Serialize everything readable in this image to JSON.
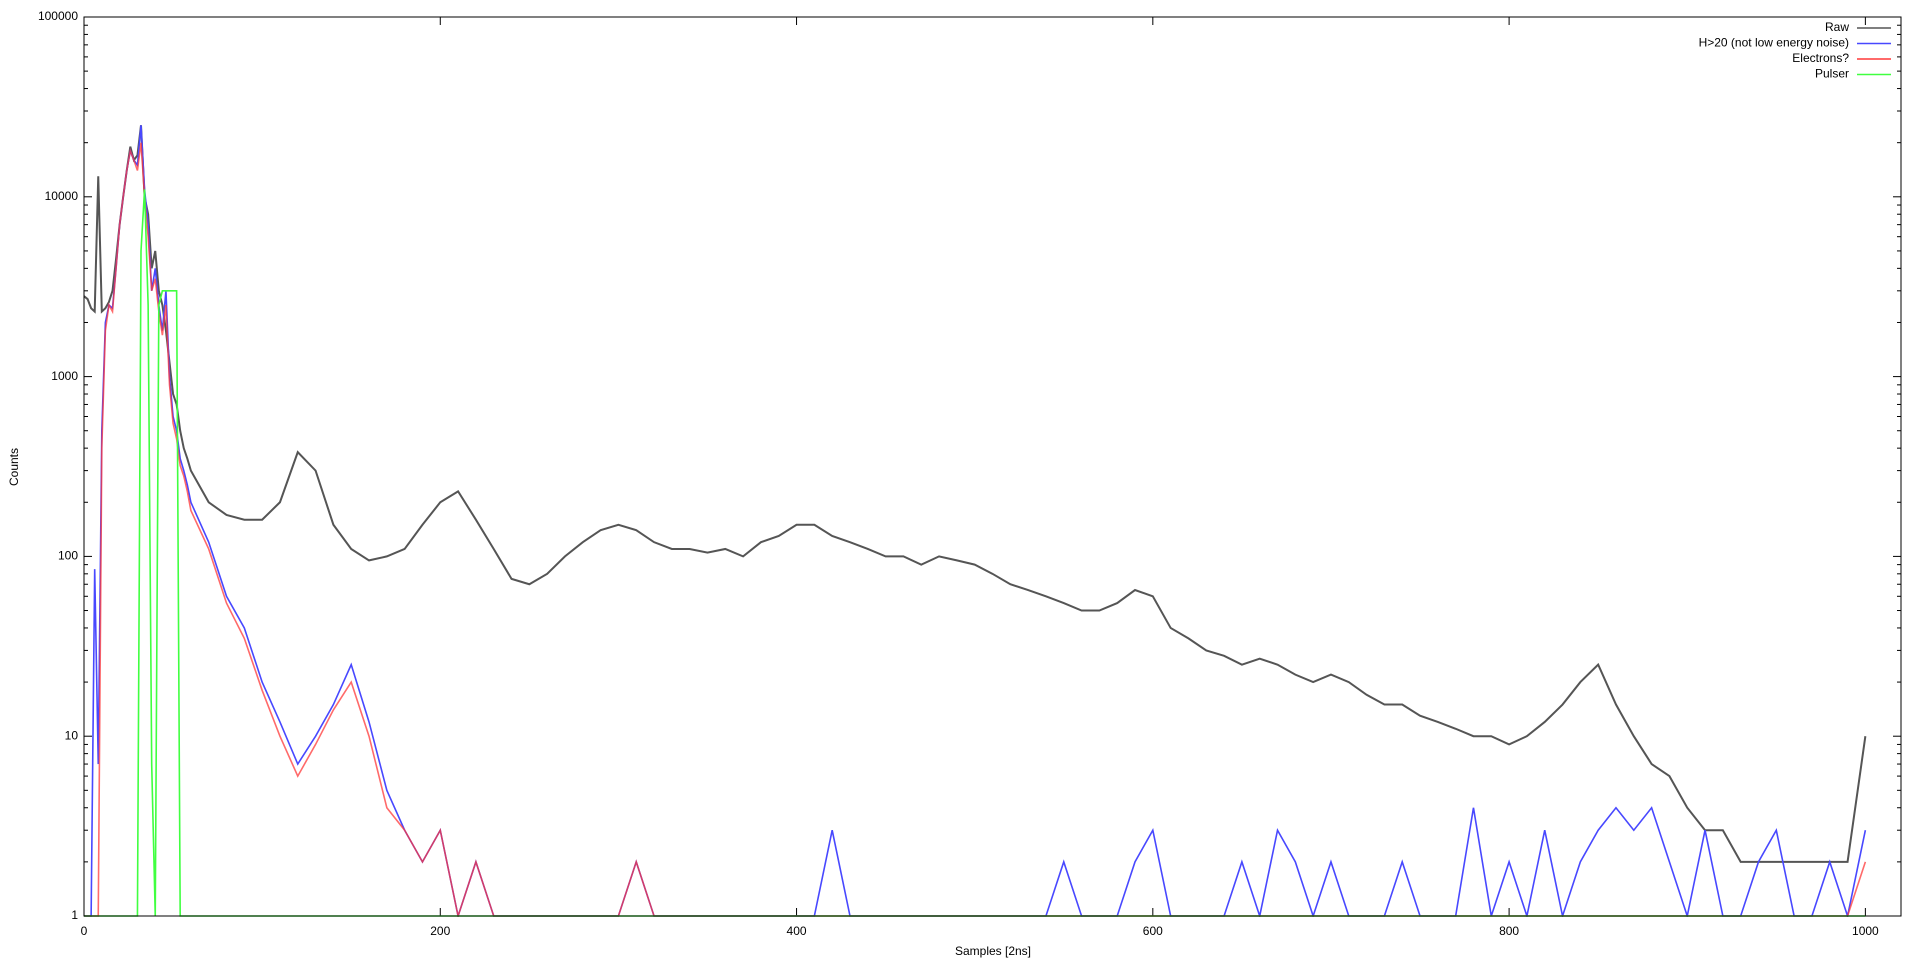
{
  "chart_data": {
    "type": "line",
    "x_label": "Samples [2ns]",
    "y_label": "Counts",
    "log_y": true,
    "legend": "top right",
    "xlim": [
      0,
      1020
    ],
    "ylim": [
      1,
      100000
    ],
    "xticks": [
      0,
      200,
      400,
      600,
      800,
      1000
    ],
    "yticks": [
      1,
      10,
      100,
      1000,
      10000,
      100000
    ],
    "x": [
      0,
      2,
      4,
      6,
      8,
      10,
      12,
      14,
      16,
      18,
      20,
      22,
      24,
      26,
      28,
      30,
      32,
      34,
      36,
      38,
      40,
      42,
      44,
      46,
      48,
      50,
      52,
      54,
      56,
      58,
      60,
      70,
      80,
      90,
      100,
      110,
      120,
      130,
      140,
      150,
      160,
      170,
      180,
      190,
      200,
      210,
      220,
      230,
      240,
      250,
      260,
      270,
      280,
      290,
      300,
      310,
      320,
      330,
      340,
      350,
      360,
      370,
      380,
      390,
      400,
      410,
      420,
      430,
      440,
      450,
      460,
      470,
      480,
      490,
      500,
      510,
      520,
      530,
      540,
      550,
      560,
      570,
      580,
      590,
      600,
      610,
      620,
      630,
      640,
      650,
      660,
      670,
      680,
      690,
      700,
      710,
      720,
      730,
      740,
      750,
      760,
      770,
      780,
      790,
      800,
      810,
      820,
      830,
      840,
      850,
      860,
      870,
      880,
      890,
      900,
      910,
      920,
      930,
      940,
      950,
      960,
      970,
      980,
      990,
      1000
    ],
    "series": [
      {
        "name": "Raw",
        "color": "#555555",
        "values": [
          2800,
          2700,
          2400,
          2300,
          13000,
          2300,
          2400,
          2600,
          3000,
          4500,
          7000,
          10000,
          14000,
          19000,
          16000,
          17000,
          25000,
          10000,
          8000,
          4000,
          5000,
          3000,
          2500,
          1800,
          1200,
          800,
          700,
          500,
          400,
          350,
          300,
          200,
          170,
          160,
          160,
          200,
          380,
          300,
          150,
          110,
          95,
          100,
          110,
          150,
          200,
          230,
          160,
          110,
          75,
          70,
          80,
          100,
          120,
          140,
          150,
          140,
          120,
          110,
          110,
          105,
          110,
          100,
          120,
          130,
          150,
          150,
          130,
          120,
          110,
          100,
          100,
          90,
          100,
          95,
          90,
          80,
          70,
          65,
          60,
          55,
          50,
          50,
          55,
          65,
          60,
          40,
          35,
          30,
          28,
          25,
          27,
          25,
          22,
          20,
          22,
          20,
          17,
          15,
          15,
          13,
          12,
          11,
          10,
          10,
          9,
          10,
          12,
          15,
          20,
          25,
          15,
          10,
          7,
          6,
          4,
          3,
          3,
          2,
          2,
          2,
          2,
          2,
          2,
          2,
          10
        ]
      },
      {
        "name": "H>20 (not low energy noise)",
        "color": "#4848ff",
        "values": [
          1,
          1,
          1,
          85,
          7,
          500,
          2000,
          2500,
          2400,
          4000,
          7000,
          10000,
          14000,
          18000,
          16000,
          15000,
          25000,
          11000,
          7000,
          3000,
          4000,
          2500,
          1800,
          3000,
          1000,
          600,
          500,
          350,
          300,
          250,
          200,
          120,
          60,
          40,
          20,
          12,
          7,
          10,
          15,
          25,
          12,
          5,
          3,
          2,
          3,
          1,
          2,
          1,
          1,
          1,
          1,
          1,
          1,
          1,
          1,
          2,
          1,
          1,
          1,
          1,
          1,
          1,
          1,
          1,
          1,
          1,
          3,
          1,
          1,
          1,
          1,
          1,
          1,
          1,
          1,
          1,
          1,
          1,
          1,
          2,
          1,
          1,
          1,
          2,
          3,
          1,
          1,
          1,
          1,
          2,
          1,
          3,
          2,
          1,
          2,
          1,
          1,
          1,
          2,
          1,
          1,
          1,
          4,
          1,
          2,
          1,
          3,
          1,
          2,
          3,
          4,
          3,
          4,
          2,
          1,
          3,
          1,
          1,
          2,
          3,
          1,
          1,
          2,
          1,
          3
        ]
      },
      {
        "name": "Electrons?",
        "color": "#ff3838",
        "values": [
          1,
          1,
          1,
          1,
          1,
          400,
          1800,
          2500,
          2300,
          4000,
          7000,
          10000,
          14000,
          18000,
          16000,
          14000,
          20000,
          10000,
          6000,
          3000,
          3500,
          2300,
          1700,
          2500,
          900,
          550,
          450,
          320,
          280,
          230,
          180,
          110,
          55,
          35,
          18,
          10,
          6,
          9,
          14,
          20,
          10,
          4,
          3,
          2,
          3,
          1,
          2,
          1,
          1,
          1,
          1,
          1,
          1,
          1,
          1,
          2,
          1,
          1,
          1,
          1,
          1,
          1,
          1,
          1,
          1,
          1,
          1,
          1,
          1,
          1,
          1,
          1,
          1,
          1,
          1,
          1,
          1,
          1,
          1,
          1,
          1,
          1,
          1,
          1,
          1,
          1,
          1,
          1,
          1,
          1,
          1,
          1,
          1,
          1,
          1,
          1,
          1,
          1,
          1,
          1,
          1,
          1,
          1,
          1,
          1,
          1,
          1,
          1,
          1,
          1,
          1,
          1,
          1,
          1,
          1,
          1,
          1,
          1,
          1,
          1,
          1,
          1,
          1,
          1,
          2
        ]
      },
      {
        "name": "Pulser",
        "color": "#40ff40",
        "values": [
          1,
          1,
          1,
          1,
          1,
          1,
          1,
          1,
          1,
          1,
          1,
          1,
          1,
          1,
          1,
          1,
          5000,
          11000,
          2500,
          7,
          1,
          2500,
          3000,
          3000,
          3000,
          3000,
          3000,
          1,
          1,
          1,
          1,
          1,
          1,
          1,
          1,
          1,
          1,
          1,
          1,
          1,
          1,
          1,
          1,
          1,
          1,
          1,
          1,
          1,
          1,
          1,
          1,
          1,
          1,
          1,
          1,
          1,
          1,
          1,
          1,
          1,
          1,
          1,
          1,
          1,
          1,
          1,
          1,
          1,
          1,
          1,
          1,
          1,
          1,
          1,
          1,
          1,
          1,
          1,
          1,
          1,
          1,
          1,
          1,
          1,
          1,
          1,
          1,
          1,
          1,
          1,
          1,
          1,
          1,
          1,
          1,
          1,
          1,
          1,
          1,
          1,
          1,
          1,
          1,
          1,
          1,
          1,
          1,
          1,
          1,
          1,
          1,
          1,
          1,
          1,
          1,
          1,
          1,
          1,
          1,
          1,
          1,
          1,
          1,
          1,
          1
        ]
      }
    ]
  }
}
